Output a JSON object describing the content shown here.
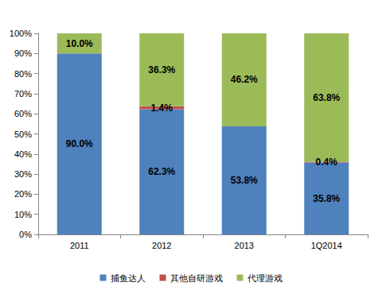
{
  "chart_data": {
    "type": "bar",
    "stacked": true,
    "data_labels": true,
    "grid": false,
    "legend": "bottom",
    "categories": [
      "2011",
      "2012",
      "2013",
      "1Q2014"
    ],
    "ylim": [
      0,
      100
    ],
    "yticks": [
      {
        "value": 0,
        "label": "0%"
      },
      {
        "value": 10,
        "label": "10%"
      },
      {
        "value": 20,
        "label": "20%"
      },
      {
        "value": 30,
        "label": "30%"
      },
      {
        "value": 40,
        "label": "40%"
      },
      {
        "value": 50,
        "label": "50%"
      },
      {
        "value": 60,
        "label": "60%"
      },
      {
        "value": 70,
        "label": "70%"
      },
      {
        "value": 80,
        "label": "80%"
      },
      {
        "value": 90,
        "label": "90%"
      },
      {
        "value": 100,
        "label": "100%"
      }
    ],
    "series": [
      {
        "name": "捕鱼达人",
        "color": "#4f81bd",
        "values": [
          90.0,
          62.3,
          53.8,
          35.8
        ],
        "value_labels": [
          "90.0%",
          "62.3%",
          "53.8%",
          "35.8%"
        ]
      },
      {
        "name": "其他自研游戏",
        "color": "#c0504d",
        "values": [
          null,
          1.4,
          null,
          0.4
        ],
        "value_labels": [
          null,
          "1.4%",
          null,
          "0.4%"
        ]
      },
      {
        "name": "代理游戏",
        "color": "#9bbb59",
        "values": [
          10.0,
          36.3,
          46.2,
          63.8
        ],
        "value_labels": [
          "10.0%",
          "36.3%",
          "46.2%",
          "63.8%"
        ]
      }
    ]
  }
}
